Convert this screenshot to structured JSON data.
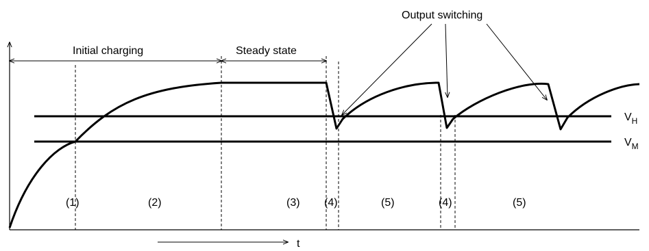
{
  "labels": {
    "initial_charging": "Initial charging",
    "steady_state": "Steady state",
    "output_switching": "Output switching",
    "time_axis": "t",
    "vh_main": "V",
    "vh_sub": "H",
    "vm_main": "V",
    "vm_sub": "M"
  },
  "phases": [
    "(1)",
    "(2)",
    "(3)",
    "(4)",
    "(5)",
    "(4)",
    "(5)"
  ],
  "colors": {
    "stroke": "#000000",
    "background": "#ffffff"
  }
}
